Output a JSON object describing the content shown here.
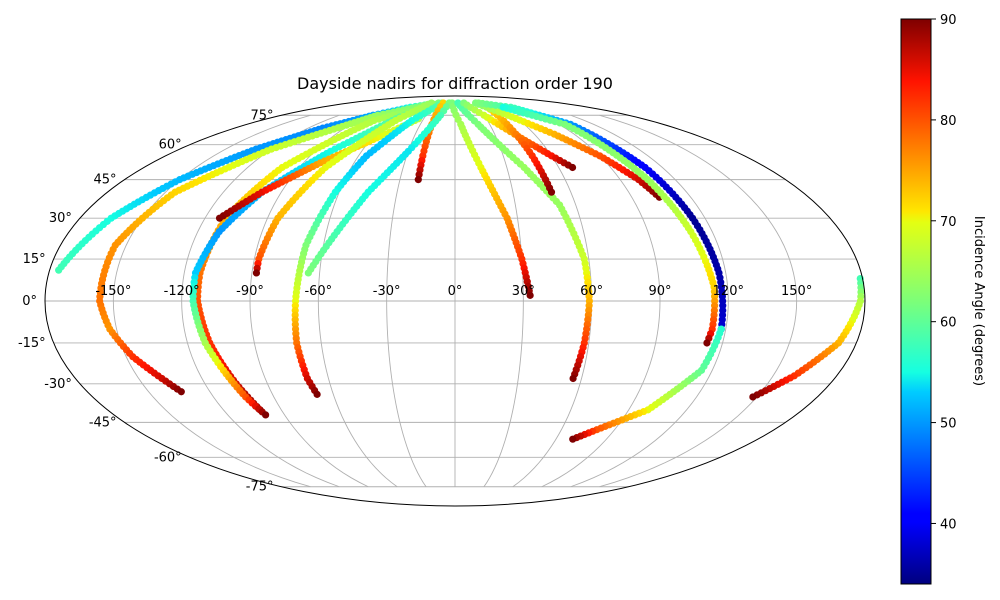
{
  "chart_data": {
    "type": "scatter",
    "projection": "mollweide",
    "title": "Dayside nadirs for diffraction order 190",
    "grid": true,
    "longitude_ticks": [
      -150,
      -120,
      -90,
      -60,
      -30,
      0,
      30,
      60,
      90,
      120,
      150
    ],
    "longitude_tick_labels": [
      "-150°",
      "-120°",
      "-90°",
      "-60°",
      "-30°",
      "0°",
      "30°",
      "60°",
      "90°",
      "120°",
      "150°"
    ],
    "latitude_ticks": [
      75,
      60,
      45,
      30,
      15,
      0,
      -15,
      -30,
      -45,
      -60,
      -75
    ],
    "latitude_tick_labels": [
      "75°",
      "60°",
      "45°",
      "30°",
      "15°",
      "0°",
      "-15°",
      "-30°",
      "-45°",
      "-60°",
      "-75°"
    ],
    "colorbar": {
      "label": "Incidence Angle (degrees)",
      "colormap": "jet",
      "range": [
        34,
        90
      ],
      "ticks": [
        40,
        50,
        60,
        70,
        80,
        90
      ],
      "tick_labels": [
        "40",
        "50",
        "60",
        "70",
        "80",
        "90"
      ]
    },
    "series": [
      {
        "points": [
          [
            -176,
            11,
            58
          ],
          [
            -165,
            30,
            55
          ],
          [
            -150,
            45,
            52
          ],
          [
            -130,
            58,
            50
          ],
          [
            -108,
            68,
            49
          ],
          [
            -85,
            75,
            51
          ],
          [
            -60,
            80,
            55
          ],
          [
            -40,
            82,
            58
          ]
        ]
      },
      {
        "points": [
          [
            -42,
            82,
            61
          ],
          [
            -80,
            75,
            64
          ],
          [
            -120,
            58,
            68
          ],
          [
            -145,
            40,
            72
          ],
          [
            -155,
            20,
            76
          ],
          [
            -156,
            0,
            78
          ],
          [
            -153,
            -10,
            76
          ],
          [
            -147,
            -20,
            82
          ],
          [
            -139,
            -28,
            86
          ],
          [
            -134,
            -33,
            90
          ]
        ]
      },
      {
        "points": [
          [
            -40,
            82,
            61
          ],
          [
            -75,
            72,
            66
          ],
          [
            -100,
            50,
            70
          ],
          [
            -110,
            30,
            74
          ],
          [
            -113,
            10,
            78
          ],
          [
            -113,
            0,
            80
          ],
          [
            -110,
            -15,
            82
          ],
          [
            -105,
            -30,
            86
          ],
          [
            -101,
            -40,
            90
          ]
        ]
      },
      {
        "points": [
          [
            -28,
            83,
            62
          ],
          [
            -55,
            74,
            60
          ],
          [
            -80,
            57,
            55
          ],
          [
            -100,
            40,
            52
          ],
          [
            -110,
            25,
            50
          ],
          [
            -115,
            10,
            53
          ],
          [
            -115,
            0,
            58
          ],
          [
            -112,
            -15,
            65
          ],
          [
            -108,
            -25,
            72
          ],
          [
            -104,
            -35,
            80
          ],
          [
            -100,
            -42,
            90
          ]
        ]
      },
      {
        "points": [
          [
            -113,
            30,
            90
          ],
          [
            -100,
            40,
            85
          ],
          [
            -80,
            52,
            75
          ],
          [
            -55,
            64,
            70
          ],
          [
            -35,
            73,
            66
          ]
        ]
      },
      {
        "points": [
          [
            -40,
            83,
            64
          ],
          [
            -55,
            72,
            67
          ],
          [
            -75,
            50,
            70
          ],
          [
            -85,
            30,
            74
          ],
          [
            -88,
            15,
            80
          ],
          [
            -88,
            10,
            90
          ]
        ]
      },
      {
        "points": [
          [
            -22,
            83,
            60
          ],
          [
            -40,
            72,
            55
          ],
          [
            -55,
            55,
            52
          ],
          [
            -62,
            40,
            55
          ],
          [
            -68,
            20,
            62
          ],
          [
            -70,
            0,
            70
          ],
          [
            -71,
            -15,
            78
          ],
          [
            -70,
            -28,
            86
          ],
          [
            -68,
            -34,
            90
          ]
        ]
      },
      {
        "points": [
          [
            -20,
            83,
            72
          ],
          [
            -20,
            70,
            76
          ],
          [
            -20,
            55,
            82
          ],
          [
            -20,
            45,
            90
          ]
        ]
      },
      {
        "points": [
          [
            -10,
            83,
            62
          ],
          [
            -15,
            75,
            58
          ],
          [
            -30,
            57,
            54
          ],
          [
            -45,
            40,
            55
          ],
          [
            -55,
            25,
            58
          ],
          [
            -65,
            10,
            62
          ]
        ]
      },
      {
        "points": [
          [
            -5,
            83,
            62
          ],
          [
            5,
            70,
            65
          ],
          [
            15,
            50,
            70
          ],
          [
            25,
            30,
            76
          ],
          [
            30,
            15,
            82
          ],
          [
            33,
            2,
            90
          ]
        ]
      },
      {
        "points": [
          [
            5,
            83,
            58
          ],
          [
            20,
            70,
            62
          ],
          [
            40,
            50,
            64
          ],
          [
            52,
            35,
            64
          ],
          [
            58,
            15,
            68
          ],
          [
            59,
            0,
            74
          ],
          [
            58,
            -15,
            82
          ],
          [
            56,
            -28,
            90
          ]
        ]
      },
      {
        "points": [
          [
            15,
            83,
            62
          ],
          [
            30,
            75,
            68
          ],
          [
            45,
            65,
            76
          ],
          [
            60,
            55,
            84
          ],
          [
            68,
            50,
            90
          ]
        ]
      },
      {
        "points": [
          [
            43,
            82,
            70
          ],
          [
            45,
            70,
            75
          ],
          [
            48,
            55,
            82
          ],
          [
            50,
            40,
            90
          ]
        ]
      },
      {
        "points": [
          [
            35,
            83,
            62
          ],
          [
            55,
            75,
            68
          ],
          [
            75,
            65,
            74
          ],
          [
            90,
            55,
            80
          ],
          [
            100,
            45,
            86
          ],
          [
            104,
            38,
            90
          ]
        ]
      },
      {
        "points": [
          [
            40,
            83,
            62
          ],
          [
            75,
            80,
            58
          ],
          [
            100,
            70,
            50
          ],
          [
            110,
            50,
            40
          ],
          [
            114,
            30,
            35
          ],
          [
            117,
            10,
            36
          ],
          [
            118,
            -10,
            38
          ]
        ]
      },
      {
        "points": [
          [
            65,
            80,
            55
          ],
          [
            95,
            70,
            62
          ],
          [
            105,
            45,
            64
          ],
          [
            110,
            25,
            68
          ],
          [
            114,
            5,
            72
          ],
          [
            114,
            -10,
            82
          ],
          [
            113,
            -15,
            90
          ]
        ]
      },
      {
        "points": [
          [
            118,
            -10,
            56
          ],
          [
            115,
            -25,
            60
          ],
          [
            100,
            -40,
            70
          ],
          [
            80,
            -48,
            80
          ],
          [
            70,
            -52,
            90
          ]
        ]
      },
      {
        "points": [
          [
            179,
            8,
            58
          ],
          [
            178,
            0,
            66
          ],
          [
            172,
            -15,
            74
          ],
          [
            160,
            -27,
            82
          ],
          [
            148,
            -35,
            90
          ]
        ]
      }
    ]
  }
}
